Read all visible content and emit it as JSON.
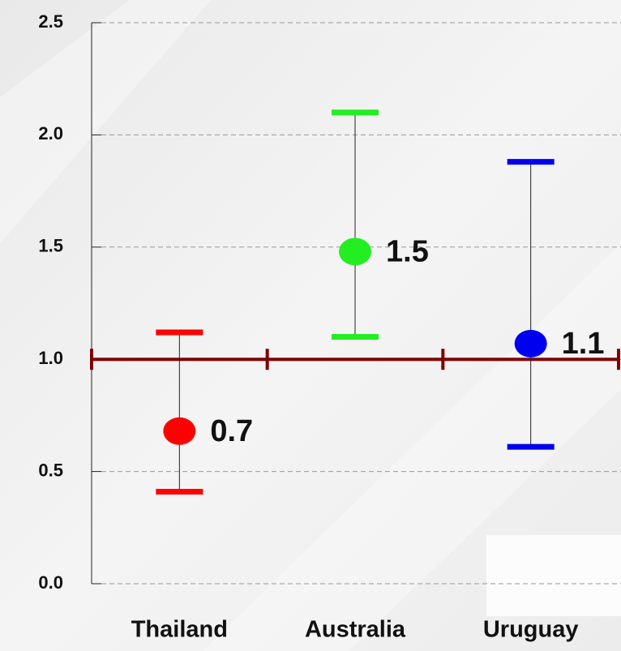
{
  "chart_data": {
    "type": "errorbar",
    "categories": [
      "Thailand",
      "Australia",
      "Uruguay"
    ],
    "values": [
      0.68,
      1.48,
      1.07
    ],
    "value_labels": [
      "0.7",
      "1.5",
      "1.1"
    ],
    "lower": [
      0.41,
      1.1,
      0.61
    ],
    "upper": [
      1.12,
      2.1,
      1.88
    ],
    "colors": [
      "#ff0000",
      "#22ee22",
      "#0000ee"
    ],
    "ylim": [
      0,
      2.5
    ],
    "yticks": [
      {
        "value": 0,
        "label": "0.0"
      },
      {
        "value": 0.5,
        "label": "0.5"
      },
      {
        "value": 1,
        "label": "1.0"
      },
      {
        "value": 1.5,
        "label": "1.5"
      },
      {
        "value": 2,
        "label": "2.0"
      },
      {
        "value": 2.5,
        "label": "2.5"
      }
    ],
    "reference_line": 1,
    "reference_color": "#800000",
    "grid": true
  }
}
